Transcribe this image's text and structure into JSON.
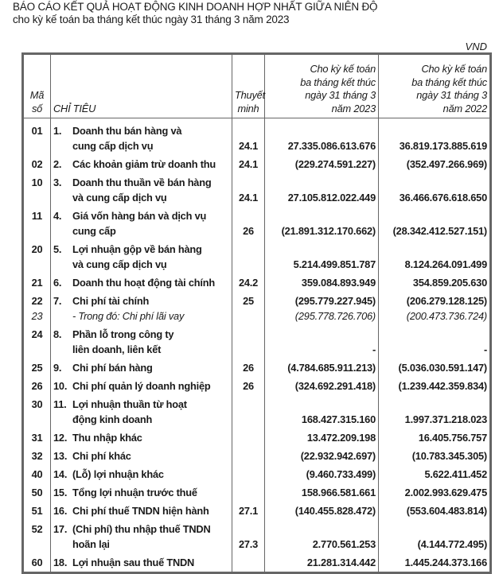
{
  "header": {
    "title": "BÁO CÁO KẾT QUẢ HOẠT ĐỘNG KINH DOANH HỢP NHẤT GIỮA NIÊN ĐỘ",
    "subtitle": "cho kỳ kế toán ba tháng kết thúc ngày 31 tháng 3 năm 2023",
    "unit": "VND"
  },
  "table": {
    "columns": {
      "code": [
        "Mã",
        "số"
      ],
      "label": "CHỈ TIÊU",
      "note": [
        "Thuyết",
        "minh"
      ],
      "period_2023": [
        "Cho kỳ kế toán",
        "ba tháng kết thúc",
        "ngày 31 tháng 3",
        "năm 2023"
      ],
      "period_2022": [
        "Cho kỳ kế toán",
        "ba tháng kết thúc",
        "ngày 31 tháng 3",
        "năm 2022"
      ]
    },
    "rows": [
      {
        "code": "01",
        "num": "1.",
        "label": [
          "Doanh thu bán hàng và",
          "cung cấp dịch vụ"
        ],
        "note": "24.1",
        "v2023": "27.335.086.613.676",
        "v2022": "36.819.173.885.619"
      },
      {
        "code": "02",
        "num": "2.",
        "label": [
          "Các khoản giảm trừ doanh thu"
        ],
        "note": "24.1",
        "v2023": "(229.274.591.227)",
        "v2022": "(352.497.266.969)"
      },
      {
        "code": "10",
        "num": "3.",
        "label": [
          "Doanh thu thuần về bán hàng",
          "và cung cấp dịch vụ"
        ],
        "note": "24.1",
        "v2023": "27.105.812.022.449",
        "v2022": "36.466.676.618.650"
      },
      {
        "code": "11",
        "num": "4.",
        "label": [
          "Giá vốn hàng bán và dịch vụ",
          "cung cấp"
        ],
        "note": "26",
        "v2023": "(21.891.312.170.662)",
        "v2022": "(28.342.412.527.151)"
      },
      {
        "code": "20",
        "num": "5.",
        "label": [
          "Lợi nhuận gộp về bán hàng",
          "và cung cấp dịch vụ"
        ],
        "note": "",
        "v2023": "5.214.499.851.787",
        "v2022": "8.124.264.091.499"
      },
      {
        "code": "21",
        "num": "6.",
        "label": [
          "Doanh thu hoạt động tài chính"
        ],
        "note": "24.2",
        "v2023": "359.084.893.949",
        "v2022": "354.859.205.630"
      },
      {
        "code": "22",
        "num": "7.",
        "label": [
          "Chi phí tài chính"
        ],
        "note": "25",
        "v2023": "(295.779.227.945)",
        "v2022": "(206.279.128.125)",
        "sub": {
          "code": "23",
          "label": "- Trong đó: Chi phí lãi vay",
          "v2023": "(295.778.726.706)",
          "v2022": "(200.473.736.724)"
        }
      },
      {
        "code": "24",
        "num": "8.",
        "label": [
          "Phần lỗ trong công ty",
          "liên doanh, liên kết"
        ],
        "note": "",
        "v2023": "-",
        "v2022": "-"
      },
      {
        "code": "25",
        "num": "9.",
        "label": [
          "Chi phí bán hàng"
        ],
        "note": "26",
        "v2023": "(4.784.685.911.213)",
        "v2022": "(5.036.030.591.147)"
      },
      {
        "code": "26",
        "num": "10.",
        "label": [
          "Chi phí quản lý doanh nghiệp"
        ],
        "note": "26",
        "v2023": "(324.692.291.418)",
        "v2022": "(1.239.442.359.834)"
      },
      {
        "code": "30",
        "num": "11.",
        "label": [
          "Lợi nhuận thuần từ hoạt",
          "động kinh doanh"
        ],
        "note": "",
        "v2023": "168.427.315.160",
        "v2022": "1.997.371.218.023"
      },
      {
        "code": "31",
        "num": "12.",
        "label": [
          "Thu nhập khác"
        ],
        "note": "",
        "v2023": "13.472.209.198",
        "v2022": "16.405.756.757"
      },
      {
        "code": "32",
        "num": "13.",
        "label": [
          "Chi phí khác"
        ],
        "note": "",
        "v2023": "(22.932.942.697)",
        "v2022": "(10.783.345.305)"
      },
      {
        "code": "40",
        "num": "14.",
        "label": [
          "(Lỗ) lợi nhuận khác"
        ],
        "note": "",
        "v2023": "(9.460.733.499)",
        "v2022": "5.622.411.452"
      },
      {
        "code": "50",
        "num": "15.",
        "label": [
          "Tổng lợi nhuận trước thuế"
        ],
        "note": "",
        "v2023": "158.966.581.661",
        "v2022": "2.002.993.629.475"
      },
      {
        "code": "51",
        "num": "16.",
        "label": [
          "Chi phí thuế TNDN hiện hành"
        ],
        "note": "27.1",
        "v2023": "(140.455.828.472)",
        "v2022": "(553.604.483.814)"
      },
      {
        "code": "52",
        "num": "17.",
        "label": [
          "(Chi phí) thu nhập thuế TNDN",
          "hoãn lại"
        ],
        "note": "27.3",
        "v2023": "2.770.561.253",
        "v2022": "(4.144.772.495)"
      },
      {
        "code": "60",
        "num": "18.",
        "label": [
          "Lợi nhuận sau thuế TNDN"
        ],
        "note": "",
        "v2023": "21.281.314.442",
        "v2022": "1.445.244.373.166"
      }
    ]
  }
}
